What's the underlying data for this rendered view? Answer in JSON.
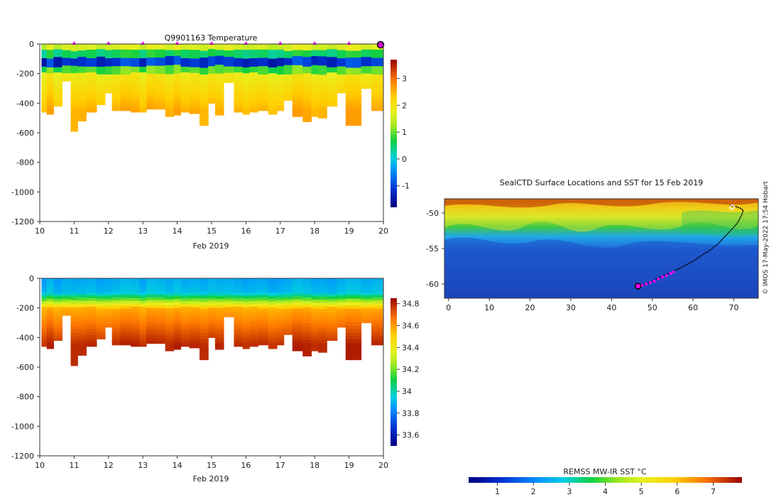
{
  "chart_data": [
    {
      "id": "temperature",
      "type": "heatmap",
      "title": "Q9901163  Temperature",
      "xlabel": "Feb 2019",
      "ylabel": "",
      "x_ticks": [
        "10",
        "11",
        "12",
        "13",
        "14",
        "15",
        "16",
        "17",
        "18",
        "19",
        "20"
      ],
      "x_range": [
        10,
        20
      ],
      "y_ticks": [
        "0",
        "-200",
        "-400",
        "-600",
        "-800",
        "-1000",
        "-1200"
      ],
      "y_range": [
        -1200,
        0
      ],
      "colorbar": {
        "ticks": [
          "3",
          "2",
          "1",
          "0",
          "-1"
        ],
        "range": [
          -1.8,
          3.7
        ]
      },
      "profile_days": [
        10.1,
        10.3,
        10.5,
        10.8,
        11.0,
        11.2,
        11.5,
        11.8,
        12.0,
        12.2,
        12.5,
        12.8,
        13.0,
        13.2,
        13.5,
        13.8,
        14.0,
        14.2,
        14.5,
        14.8,
        15.0,
        15.2,
        15.5,
        15.8,
        16.0,
        16.2,
        16.5,
        16.8,
        17.0,
        17.2,
        17.5,
        17.8,
        18.0,
        18.2,
        18.5,
        18.8,
        19.0,
        19.2,
        19.5,
        19.8
      ],
      "max_depths": [
        -460,
        -475,
        -420,
        -250,
        -590,
        -520,
        -460,
        -410,
        -330,
        -450,
        -450,
        -460,
        -460,
        -440,
        -440,
        -490,
        -480,
        -460,
        -470,
        -550,
        -400,
        -480,
        -260,
        -460,
        -475,
        -460,
        -450,
        -475,
        -450,
        -380,
        -490,
        -525,
        -490,
        -500,
        -420,
        -330,
        -550,
        -550,
        -300,
        -450
      ],
      "surface_markers": [
        11,
        12,
        13,
        14,
        15,
        16,
        17,
        18,
        19
      ]
    },
    {
      "id": "salinity",
      "type": "heatmap",
      "title": "",
      "xlabel": "Feb 2019",
      "ylabel": "",
      "x_ticks": [
        "10",
        "11",
        "12",
        "13",
        "14",
        "15",
        "16",
        "17",
        "18",
        "19",
        "20"
      ],
      "x_range": [
        10,
        20
      ],
      "y_ticks": [
        "0",
        "-200",
        "-400",
        "-600",
        "-800",
        "-1000",
        "-1200"
      ],
      "y_range": [
        -1200,
        0
      ],
      "colorbar": {
        "ticks": [
          "34.8",
          "34.6",
          "34.4",
          "34.2",
          "34",
          "33.8",
          "33.6"
        ],
        "range": [
          33.5,
          34.85
        ]
      }
    },
    {
      "id": "sst-map",
      "type": "heatmap",
      "title": "SealCTD Surface Locations and SST for 15 Feb 2019",
      "x_ticks": [
        "0",
        "10",
        "20",
        "30",
        "40",
        "50",
        "60",
        "70"
      ],
      "x_range": [
        -1,
        76
      ],
      "y_ticks": [
        "-50",
        "-55",
        "-60"
      ],
      "y_range": [
        -62,
        -48
      ],
      "colorbar": {
        "label": "REMSS MW-IR SST °C",
        "ticks": [
          "1",
          "2",
          "3",
          "4",
          "5",
          "6",
          "7"
        ],
        "range": [
          0.2,
          7.8
        ]
      },
      "track_lon": [
        46.5,
        48,
        50,
        52,
        54,
        56,
        58,
        60,
        62,
        64,
        66,
        68,
        70,
        71,
        72,
        72.3,
        71.5,
        70.5,
        69.5,
        69
      ],
      "track_lat": [
        -60.3,
        -60,
        -59.6,
        -59,
        -58.5,
        -58,
        -57.4,
        -56.8,
        -56,
        -55.3,
        -54.4,
        -53.2,
        -52,
        -51.3,
        -50.2,
        -49.6,
        -49.3,
        -49.1,
        -49.0,
        -48.9
      ],
      "recent_positions_lon": [
        47.5,
        48.5,
        49.5,
        50.5,
        51.5,
        52.5,
        53.5,
        54.5,
        55.2
      ],
      "recent_positions_lat": [
        -60.2,
        -60.0,
        -59.8,
        -59.6,
        -59.3,
        -59.0,
        -58.8,
        -58.5,
        -58.3
      ],
      "current_position": [
        46.5,
        -60.3
      ]
    }
  ],
  "credit": "© IMOS 17-May-2022 17:54 Hobart"
}
